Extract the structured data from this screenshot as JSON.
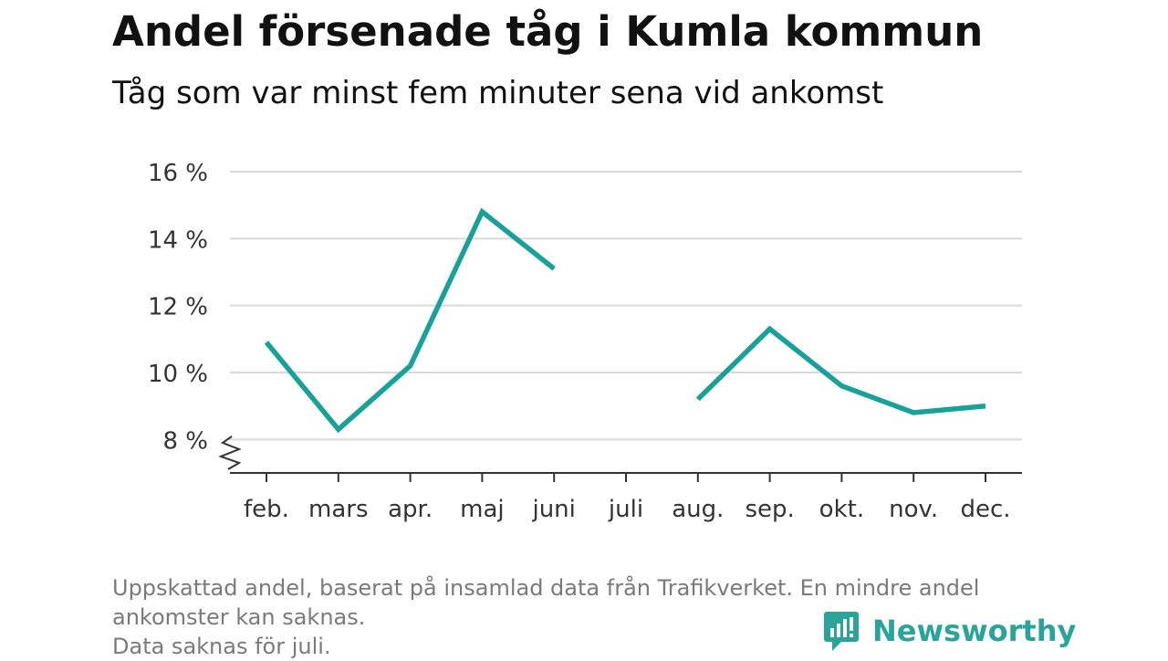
{
  "header": {
    "title": "Andel försenade tåg i Kumla kommun",
    "subtitle": "Tåg som var minst fem minuter sena vid ankomst"
  },
  "footnote": {
    "line1": "Uppskattad andel, baserat på insamlad data från Trafikverket. En mindre andel",
    "line2": "ankomster kan saknas.",
    "line3": "Data saknas för juli."
  },
  "brand": {
    "name": "Newsworthy",
    "icon": "newsworthy-logo-icon",
    "color": "#2aa39a"
  },
  "chart_data": {
    "type": "line",
    "categories": [
      "feb.",
      "mars",
      "apr.",
      "maj",
      "juni",
      "juli",
      "aug.",
      "sep.",
      "okt.",
      "nov.",
      "dec."
    ],
    "series": [
      {
        "values": [
          10.9,
          8.3,
          10.2,
          14.8,
          13.1,
          null,
          9.2,
          11.3,
          9.6,
          8.8,
          9.0
        ],
        "color": "#17a198"
      }
    ],
    "yticks": [
      8,
      10,
      12,
      14,
      16
    ],
    "ytick_labels": [
      "8 %",
      "10 %",
      "12 %",
      "14 %",
      "16 %"
    ],
    "ylim": [
      7,
      16
    ],
    "y_axis_break": true,
    "grid": true,
    "xlabel": "",
    "ylabel": ""
  }
}
